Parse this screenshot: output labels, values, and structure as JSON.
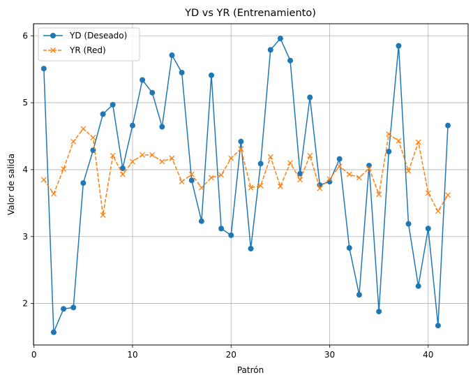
{
  "chart_data": {
    "type": "line",
    "title": "YD vs YR (Entrenamiento)",
    "xlabel": "Patrón",
    "ylabel": "Valor de salida",
    "xlim": [
      -0.05,
      44.05
    ],
    "ylim": [
      1.38,
      6.18
    ],
    "xticks": [
      0,
      10,
      20,
      30,
      40
    ],
    "yticks": [
      2,
      3,
      4,
      5,
      6
    ],
    "grid": true,
    "legend_position": "top-left",
    "x": [
      1,
      2,
      3,
      4,
      5,
      6,
      7,
      8,
      9,
      10,
      11,
      12,
      13,
      14,
      15,
      16,
      17,
      18,
      19,
      20,
      21,
      22,
      23,
      24,
      25,
      26,
      27,
      28,
      29,
      30,
      31,
      32,
      33,
      34,
      35,
      36,
      37,
      38,
      39,
      40,
      41,
      42
    ],
    "series": [
      {
        "name": "YD (Deseado)",
        "color": "#1f77b4",
        "style": "solid",
        "marker": "circle",
        "values": [
          5.51,
          1.57,
          1.92,
          1.94,
          3.8,
          4.29,
          4.83,
          4.97,
          4.02,
          4.66,
          5.34,
          5.15,
          4.64,
          5.71,
          5.45,
          3.84,
          3.23,
          5.41,
          3.12,
          3.02,
          4.42,
          2.82,
          4.09,
          5.79,
          5.96,
          5.63,
          3.94,
          5.08,
          3.77,
          3.82,
          4.16,
          2.83,
          2.13,
          4.06,
          1.88,
          4.27,
          5.85,
          3.19,
          2.26,
          3.12,
          1.67,
          4.66
        ]
      },
      {
        "name": "YR (Red)",
        "color": "#ff7f0e",
        "style": "dashed",
        "marker": "x",
        "values": [
          3.85,
          3.64,
          4.01,
          4.42,
          4.61,
          4.48,
          3.32,
          4.21,
          3.93,
          4.12,
          4.22,
          4.22,
          4.12,
          4.17,
          3.82,
          3.93,
          3.73,
          3.88,
          3.92,
          4.17,
          4.31,
          3.73,
          3.76,
          4.19,
          3.75,
          4.1,
          3.85,
          4.21,
          3.72,
          3.86,
          4.05,
          3.93,
          3.88,
          4.02,
          3.63,
          4.53,
          4.43,
          3.98,
          4.41,
          3.65,
          3.38,
          3.62
        ]
      }
    ]
  }
}
